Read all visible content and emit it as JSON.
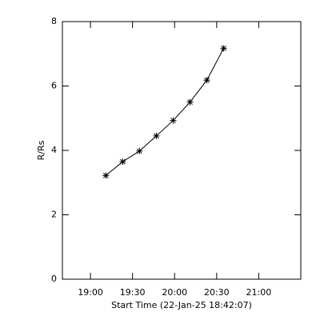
{
  "chart_data": {
    "type": "scatter-line",
    "x_label": "Start Time (22-Jan-25 18:42:07)",
    "y_label": "R/Rs",
    "x": [
      1151,
      1163,
      1175,
      1187,
      1199,
      1211,
      1223,
      1235
    ],
    "values": [
      3.22,
      3.65,
      3.98,
      4.45,
      4.93,
      5.5,
      6.18,
      7.17
    ],
    "color": "#000000",
    "xlim": [
      1120,
      1290
    ],
    "xticks": [
      {
        "value": 1140,
        "label": "19:00"
      },
      {
        "value": 1170,
        "label": "19:30"
      },
      {
        "value": 1200,
        "label": "20:00"
      },
      {
        "value": 1230,
        "label": "20:30"
      },
      {
        "value": 1260,
        "label": "21:00"
      }
    ],
    "ylim": [
      0,
      8
    ],
    "yticks": [
      0,
      2,
      4,
      6,
      8
    ]
  }
}
